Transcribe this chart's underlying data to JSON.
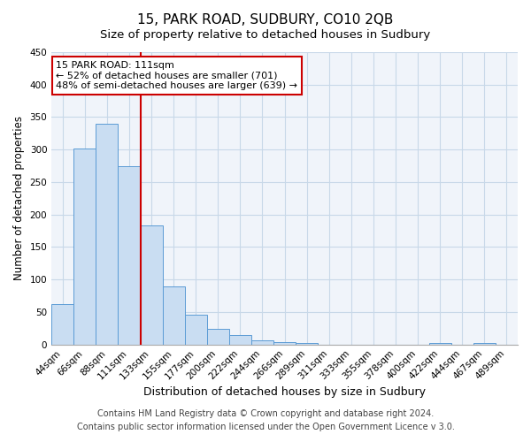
{
  "title": "15, PARK ROAD, SUDBURY, CO10 2QB",
  "subtitle": "Size of property relative to detached houses in Sudbury",
  "xlabel": "Distribution of detached houses by size in Sudbury",
  "ylabel": "Number of detached properties",
  "bar_labels": [
    "44sqm",
    "66sqm",
    "88sqm",
    "111sqm",
    "133sqm",
    "155sqm",
    "177sqm",
    "200sqm",
    "222sqm",
    "244sqm",
    "266sqm",
    "289sqm",
    "311sqm",
    "333sqm",
    "355sqm",
    "378sqm",
    "400sqm",
    "422sqm",
    "444sqm",
    "467sqm",
    "489sqm"
  ],
  "bar_values": [
    62,
    302,
    340,
    275,
    183,
    90,
    46,
    24,
    15,
    7,
    4,
    3,
    0,
    0,
    0,
    0,
    0,
    3,
    0,
    3,
    0
  ],
  "bar_color": "#c9ddf2",
  "bar_edge_color": "#5b9bd5",
  "vline_x_index": 3.5,
  "vline_color": "#cc0000",
  "annotation_title": "15 PARK ROAD: 111sqm",
  "annotation_line1": "← 52% of detached houses are smaller (701)",
  "annotation_line2": "48% of semi-detached houses are larger (639) →",
  "annotation_box_color": "#ffffff",
  "annotation_box_edge_color": "#cc0000",
  "ylim": [
    0,
    450
  ],
  "yticks": [
    0,
    50,
    100,
    150,
    200,
    250,
    300,
    350,
    400,
    450
  ],
  "footer1": "Contains HM Land Registry data © Crown copyright and database right 2024.",
  "footer2": "Contains public sector information licensed under the Open Government Licence v 3.0.",
  "bg_color": "#ffffff",
  "plot_bg_color": "#f0f4fa",
  "title_fontsize": 11,
  "subtitle_fontsize": 9.5,
  "xlabel_fontsize": 9,
  "ylabel_fontsize": 8.5,
  "tick_fontsize": 7.5,
  "annotation_fontsize": 8,
  "footer_fontsize": 7
}
